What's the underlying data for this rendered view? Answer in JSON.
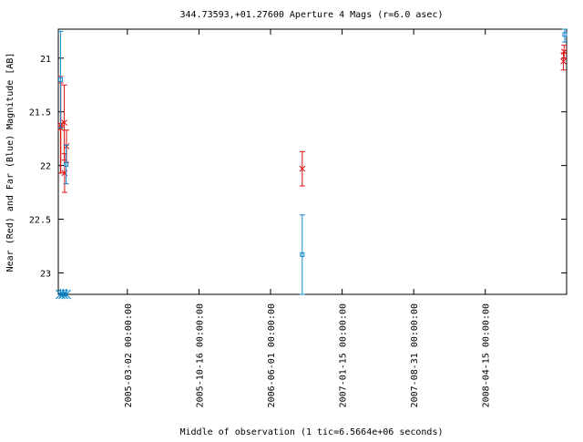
{
  "chart_data": {
    "type": "scatter",
    "title": "344.73593,+01.27600   Aperture 4 Mags (r=6.0 asec)",
    "xlabel": "Middle of observation (1 tic=6.5664e+06 seconds)",
    "ylabel": "Near (Red) and Far (Blue) Magnitude [AB]",
    "ylim": [
      23.2,
      20.73
    ],
    "y_inverted": true,
    "xlim": [
      "2004-07-25",
      "2008-12-30"
    ],
    "y_ticks": [
      "21",
      "21.5",
      "22",
      "22.5",
      "23"
    ],
    "x_ticks": [
      {
        "date": "2005-03-02",
        "label": "2005-03-02 00:00:00"
      },
      {
        "date": "2005-10-16",
        "label": "2005-10-16 00:00:00"
      },
      {
        "date": "2006-06-01",
        "label": "2006-06-01 00:00:00"
      },
      {
        "date": "2007-01-15",
        "label": "2007-01-15 00:00:00"
      },
      {
        "date": "2007-08-31",
        "label": "2007-08-31 00:00:00"
      },
      {
        "date": "2008-04-15",
        "label": "2008-04-15 00:00:00"
      }
    ],
    "grid": false,
    "series": [
      {
        "color": "#dd1111",
        "marker": "x",
        "points": [
          {
            "x": "2004-08-01",
            "y": 21.62,
            "err": 0.45
          },
          {
            "x": "2004-08-02",
            "y": 21.65,
            "err": 0.42
          },
          {
            "x": "2004-08-13",
            "y": 21.6,
            "err": 0.35
          },
          {
            "x": "2004-08-14",
            "y": 22.07,
            "err": 0.18
          },
          {
            "x": "2004-08-20",
            "y": 21.82,
            "err": 0.15
          },
          {
            "x": "2006-09-10",
            "y": 22.03,
            "err": 0.16
          },
          {
            "x": "2008-12-20",
            "y": 21.03,
            "err": 0.08
          },
          {
            "x": "2008-12-22",
            "y": 20.94,
            "err": 0.06
          }
        ]
      },
      {
        "color": "#1188cc",
        "marker": "square",
        "points": [
          {
            "x": "2004-08-01",
            "y": 21.2,
            "err": 0.45
          },
          {
            "x": "2004-08-19",
            "y": 21.99,
            "err": 0.18
          },
          {
            "x": "2006-09-10",
            "y": 22.83,
            "err": 0.37
          },
          {
            "x": "2008-12-24",
            "y": 20.78,
            "err": 0.07
          }
        ]
      }
    ],
    "limit_markers": [
      {
        "x": "2004-08-01",
        "y": 23.2,
        "color": "#1188cc",
        "marker": "asterisk"
      },
      {
        "x": "2004-08-10",
        "y": 23.2,
        "color": "#1188cc",
        "marker": "asterisk"
      },
      {
        "x": "2004-08-19",
        "y": 23.2,
        "color": "#1188cc",
        "marker": "asterisk"
      }
    ]
  }
}
